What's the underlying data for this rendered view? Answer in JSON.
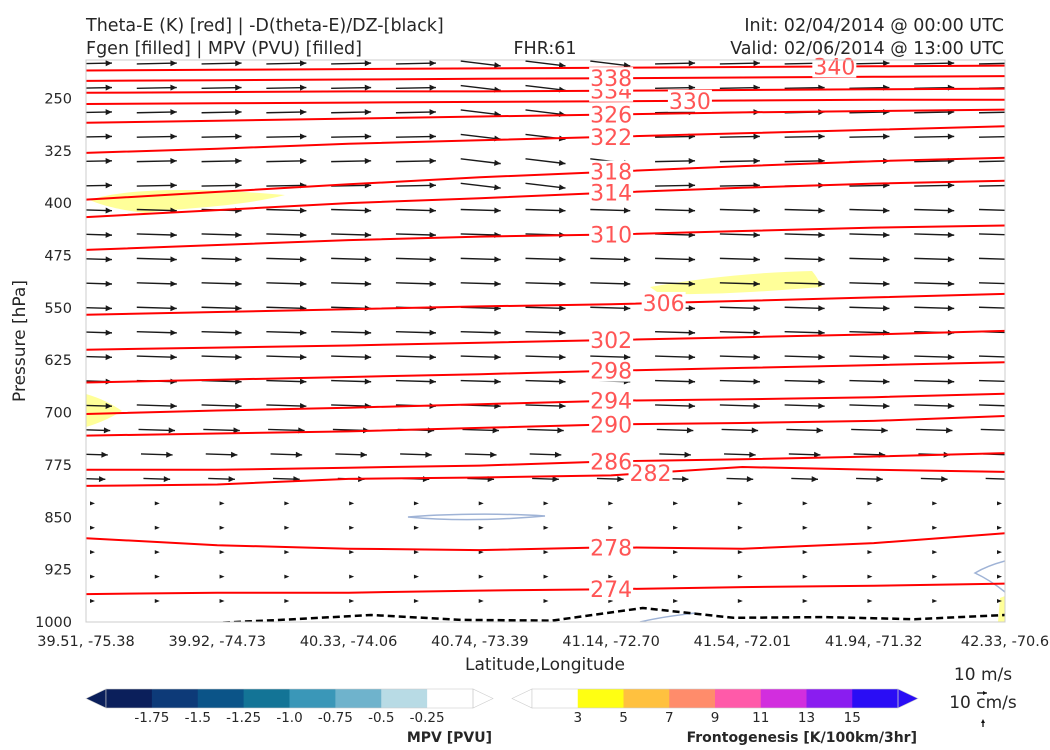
{
  "header": {
    "title_left_1": "Theta-E (K) [red] | -D(theta-E)/DZ-[black]",
    "title_left_2": "Fgen [filled] | MPV (PVU) [filled]",
    "title_center": "FHR:61",
    "title_right_1": "Init: 02/04/2014 @ 00:00 UTC",
    "title_right_2": "Valid: 02/06/2014 @ 13:00 UTC"
  },
  "chart_data": {
    "type": "cross-section",
    "xlabel": "Latitude,Longitude",
    "ylabel": "Pressure [hPa]",
    "x_ticks": [
      "39.51, -75.38",
      "39.92, -74.73",
      "40.33, -74.06",
      "40.74, -73.39",
      "41.14, -72.70",
      "41.54, -72.01",
      "41.94, -71.32",
      "42.33, -70.6"
    ],
    "y_axis": {
      "ticks": [
        250,
        325,
        400,
        475,
        550,
        625,
        700,
        775,
        850,
        925,
        1000
      ],
      "range": [
        195,
        1000
      ],
      "inverted": true
    },
    "theta_e_color": "#ff0000",
    "theta_e_contours": [
      {
        "level": 274,
        "label": "274",
        "label_x": 4.0,
        "y": [
          960,
          958,
          958,
          955,
          953,
          950,
          948,
          945
        ]
      },
      {
        "level": 278,
        "label": "278",
        "label_x": 4.0,
        "y": [
          880,
          890,
          895,
          897,
          893,
          895,
          887,
          873
        ]
      },
      {
        "level": 282,
        "label": "282",
        "label_x": 4.3,
        "y": [
          805,
          803,
          795,
          793,
          790,
          778,
          782,
          785
        ]
      },
      {
        "level": 286,
        "label": "286",
        "label_x": 4.0,
        "y": [
          782,
          782,
          779,
          776,
          770,
          767,
          763,
          758
        ]
      },
      {
        "level": 290,
        "label": "290",
        "label_x": 4.0,
        "y": [
          733,
          730,
          727,
          722,
          717,
          715,
          712,
          705
        ]
      },
      {
        "level": 294,
        "label": "294",
        "label_x": 4.0,
        "y": [
          702,
          697,
          693,
          688,
          683,
          681,
          678,
          673
        ]
      },
      {
        "level": 298,
        "label": "298",
        "label_x": 4.0,
        "y": [
          657,
          653,
          649,
          645,
          640,
          636,
          632,
          628
        ]
      },
      {
        "level": 302,
        "label": "302",
        "label_x": 4.0,
        "y": [
          610,
          607,
          604,
          600,
          596,
          592,
          588,
          583
        ]
      },
      {
        "level": 306,
        "label": "306",
        "label_x": 4.4,
        "y": [
          560,
          556,
          552,
          548,
          545,
          540,
          535,
          530
        ]
      },
      {
        "level": 310,
        "label": "310",
        "label_x": 4.0,
        "y": [
          467,
          460,
          453,
          448,
          445,
          440,
          435,
          432
        ]
      },
      {
        "level": 314,
        "label": "314",
        "label_x": 4.0,
        "y": [
          420,
          410,
          400,
          393,
          385,
          378,
          372,
          368
        ]
      },
      {
        "level": 318,
        "label": "318",
        "label_x": 4.0,
        "y": [
          395,
          384,
          373,
          363,
          355,
          347,
          340,
          335
        ]
      },
      {
        "level": 322,
        "label": "322",
        "label_x": 4.0,
        "y": [
          328,
          322,
          315,
          310,
          305,
          300,
          295,
          290
        ]
      },
      {
        "level": 326,
        "label": "326",
        "label_x": 4.0,
        "y": [
          285,
          282,
          279,
          276,
          273,
          270,
          268,
          266
        ]
      },
      {
        "level": 330,
        "label": "330",
        "label_x": 4.6,
        "y": [
          258,
          257,
          256,
          255,
          254,
          253,
          252,
          252
        ]
      },
      {
        "level": 334,
        "label": "334",
        "label_x": 4.0,
        "y": [
          242,
          241,
          240,
          240,
          239,
          238,
          237,
          236
        ]
      },
      {
        "level": 338,
        "label": "338",
        "label_x": 4.0,
        "y": [
          225,
          224,
          223,
          222,
          221,
          220,
          219,
          218
        ]
      },
      {
        "level": 340,
        "label": "340",
        "label_x": 5.7,
        "y": [
          210,
          209,
          208,
          207,
          206,
          205,
          204,
          203
        ]
      }
    ],
    "mpv_zero_contour": {
      "style": "dashed",
      "color": "#000000",
      "y": [
        1003,
        997,
        990,
        997,
        998,
        980,
        994,
        993,
        996,
        990
      ]
    },
    "fgen_fill_color": "#ffff99",
    "mpv_contour_color": "#9fb3d6",
    "wind_key": {
      "u_label": "10 m/s",
      "w_label": "10 cm/s"
    },
    "colorbars": [
      {
        "title": "MPV [PVU]",
        "colors": [
          "#0b1f5b",
          "#0d3a78",
          "#0b5488",
          "#137496",
          "#3a97b8",
          "#6fb3cc",
          "#b8dbe5",
          "#ffffff"
        ],
        "tick_labels": [
          "-1.75",
          "-1.5",
          "-1.25",
          "-1.0",
          "-0.75",
          "-0.5",
          "-0.25"
        ]
      },
      {
        "title": "Frontogenesis [K/100km/3hr]",
        "colors": [
          "#ffffff",
          "#ffff12",
          "#ffc13f",
          "#ff8c6b",
          "#ff5aa9",
          "#d22ede",
          "#8a1df0",
          "#2a0df5"
        ],
        "tick_labels": [
          "3",
          "5",
          "7",
          "9",
          "11",
          "13",
          "15"
        ]
      }
    ]
  }
}
